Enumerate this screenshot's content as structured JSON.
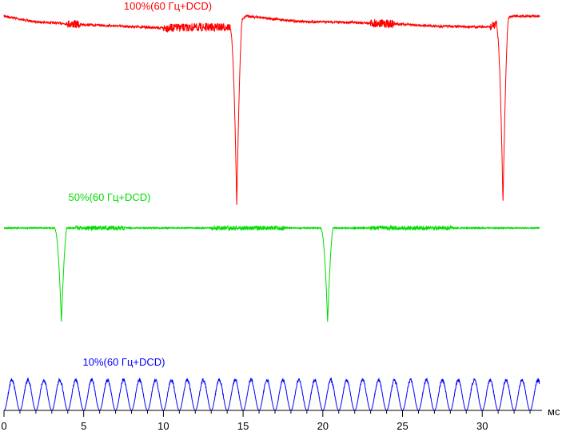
{
  "chart_data": {
    "type": "line",
    "xlabel": "мс",
    "xlim": [
      0,
      33.6
    ],
    "x_ticks": [
      0,
      5,
      10,
      15,
      20,
      25,
      30
    ],
    "grid": false,
    "legend": "none",
    "series": [
      {
        "name": "100%(60 Гц+DCD)",
        "color": "#ff0000",
        "dip_centers_ms": [
          14.6,
          31.3
        ],
        "dip_depth": 1.0,
        "noise_segments_ms": [
          [
            4.0,
            4.8
          ],
          [
            10.0,
            14.2
          ],
          [
            23.0,
            24.5
          ],
          [
            30.5,
            31.0
          ]
        ],
        "step_points_ms": [
          [
            0.0,
            0.0
          ],
          [
            1.8,
            0.06
          ],
          [
            4.5,
            0.09
          ],
          [
            10.0,
            0.13
          ],
          [
            14.2,
            0.12
          ],
          [
            15.2,
            0.0
          ],
          [
            18.5,
            0.06
          ],
          [
            22.0,
            0.07
          ],
          [
            25.0,
            0.09
          ],
          [
            27.0,
            0.11
          ],
          [
            30.5,
            0.12
          ],
          [
            31.9,
            0.0
          ],
          [
            33.6,
            0.0
          ]
        ]
      },
      {
        "name": "50%(60 Гц+DCD)",
        "color": "#00dd00",
        "dip_centers_ms": [
          3.6,
          20.3
        ],
        "dip_depth": 1.0,
        "noise_segments_ms": [
          [
            4.5,
            7.6
          ],
          [
            13.0,
            17.6
          ],
          [
            23.0,
            28.2
          ]
        ],
        "step_points_ms": [
          [
            0.0,
            0.0
          ],
          [
            33.6,
            0.0
          ]
        ]
      },
      {
        "name": "10%(60 Гц+DCD)",
        "color": "#0000ff",
        "period_ms": 1.0,
        "amplitude": 1.0
      }
    ]
  }
}
